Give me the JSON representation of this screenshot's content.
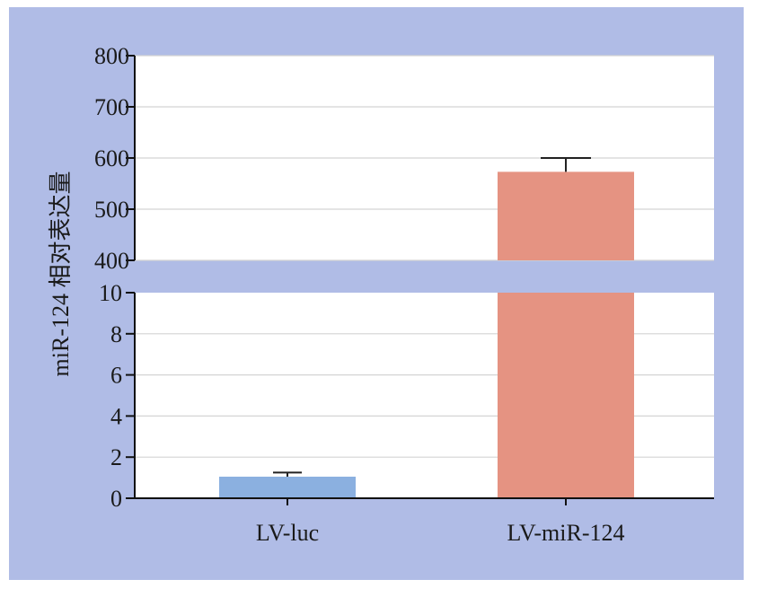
{
  "chart_data": {
    "type": "bar",
    "title": "",
    "xlabel": "",
    "ylabel": "miR-124 相对表达量",
    "categories": [
      "LV-luc",
      "LV-miR-124"
    ],
    "values": [
      1.05,
      573
    ],
    "error_upper": [
      1.25,
      600
    ],
    "colors": [
      "#8bb0e0",
      "#e59382"
    ],
    "background_color": "#b0bce6",
    "y_axis_break": {
      "lower_range": [
        0,
        10
      ],
      "upper_range": [
        400,
        800
      ],
      "lower_ticks": [
        0,
        2,
        4,
        6,
        8,
        10
      ],
      "upper_ticks": [
        400,
        500,
        600,
        700,
        800
      ]
    },
    "grid": true
  }
}
